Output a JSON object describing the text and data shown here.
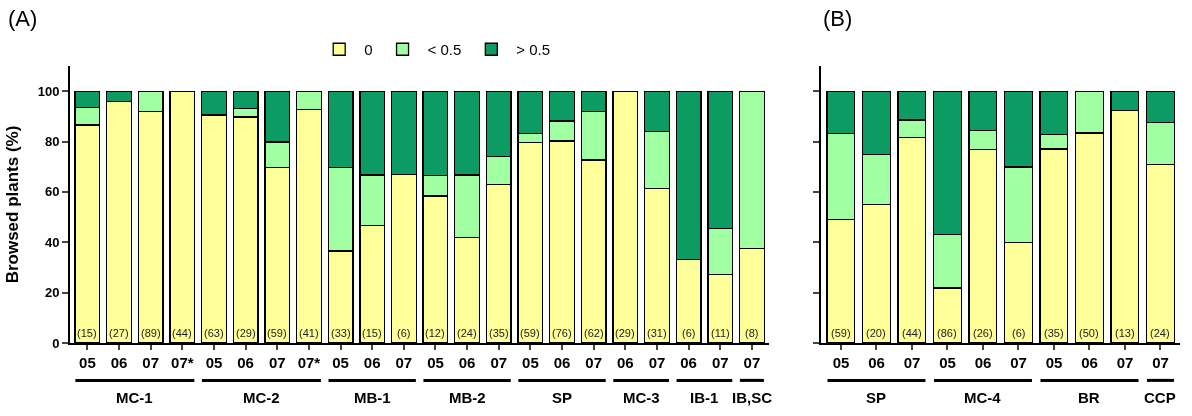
{
  "chart_data": [
    {
      "type": "bar",
      "stacked": true,
      "title": "(A)",
      "ylabel": "Browsed plants (%)",
      "legend": "top",
      "categories": [
        "05",
        "06",
        "07",
        "07*",
        "05",
        "06",
        "07",
        "07*",
        "05",
        "06",
        "07",
        "05",
        "06",
        "07",
        "05",
        "06",
        "07",
        "06",
        "07",
        "06",
        "07",
        "07"
      ],
      "series": [
        {
          "name": "0",
          "color": "#ffff99",
          "values": [
            86.6,
            96,
            92,
            100,
            90.5,
            89.8,
            69.6,
            92.7,
            36.5,
            46.7,
            67,
            58.4,
            41.8,
            62.9,
            79.7,
            80.2,
            72.7,
            100,
            61.4,
            33.2,
            27.3,
            37.4
          ]
        },
        {
          "name": "< 0.5",
          "color": "#a0ffa0",
          "values": [
            6.9,
            0,
            8,
            0,
            0,
            3.4,
            10.2,
            7.3,
            33.1,
            20,
            0,
            8.2,
            24.9,
            11.2,
            3.5,
            8,
            19.3,
            0,
            22.6,
            0,
            18.2,
            62.6
          ]
        },
        {
          "name": "> 0.5",
          "color": "#0d9b64",
          "values": [
            6.5,
            4,
            0,
            0,
            9.5,
            6.8,
            20.2,
            0,
            30.4,
            33.3,
            33,
            33.4,
            33.3,
            25.9,
            16.8,
            11.8,
            8,
            0,
            16,
            66.8,
            54.5,
            0
          ]
        }
      ],
      "annotations": [
        "MC-1",
        "MC-2",
        "MB-1",
        "MB-2",
        "SP",
        "MC-3",
        "IB-1",
        "IB,SC",
        "(15)",
        "(27)",
        "(89)",
        "(44)",
        "(63)",
        "(29)",
        "(59)",
        "(41)",
        "(33)",
        "(15)",
        "(6)",
        "(12)",
        "(24)",
        "(35)",
        "(59)",
        "(76)",
        "(62)",
        "(29)",
        "(31)",
        "(6)",
        "(11)",
        "(8)"
      ],
      "ylim": [
        0,
        110
      ],
      "yticks": [
        0,
        20,
        40,
        60,
        80,
        100
      ]
    },
    {
      "type": "bar",
      "stacked": true,
      "title": "(B)",
      "tick_labels": "x",
      "categories": [
        "05",
        "06",
        "07",
        "05",
        "06",
        "07",
        "05",
        "06",
        "07",
        "07"
      ],
      "series": [
        {
          "color": "#ffff99",
          "values": [
            49,
            55,
            81.7,
            21.9,
            76.9,
            40,
            77,
            83.4,
            92.2,
            70.8
          ]
        },
        {
          "color": "#a0ffa0",
          "values": [
            34.2,
            19.9,
            6.9,
            21.1,
            7.6,
            29.9,
            5.8,
            16.6,
            0,
            16.7
          ]
        },
        {
          "color": "#0d9b64",
          "values": [
            16.8,
            25.1,
            11.4,
            57,
            15.5,
            30.1,
            17.2,
            0,
            7.8,
            12.5
          ]
        }
      ],
      "annotations": [
        "SP",
        "MC-4",
        "BR",
        "CCP",
        "(59)",
        "(20)",
        "(44)",
        "(86)",
        "(26)",
        "(6)",
        "(35)",
        "(50)",
        "(13)",
        "(24)"
      ],
      "ylim": [
        0,
        110
      ],
      "yticks": [
        0,
        20,
        40,
        60,
        80,
        100
      ]
    }
  ]
}
